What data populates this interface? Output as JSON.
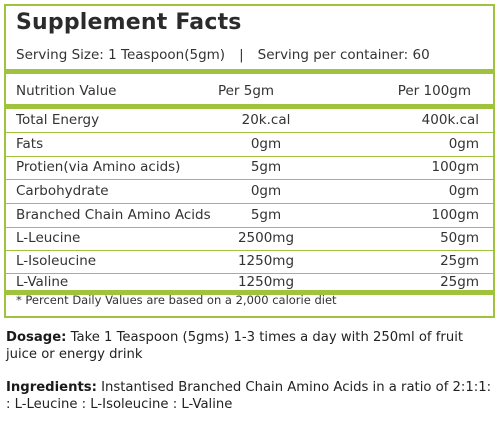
{
  "panel": {
    "title": "Supplement Facts",
    "serving_size": "Serving Size:  1 Teaspoon(5gm)",
    "serving_separator": "|",
    "servings_per_container": "Serving per container: 60",
    "header": {
      "label": "Nutrition Value",
      "per_5gm": "Per 5gm",
      "per_100gm": "Per 100gm"
    },
    "rows": [
      {
        "name": "Total Energy",
        "per_5gm": "20k.cal",
        "per_100gm": "400k.cal"
      },
      {
        "name": "Fats",
        "per_5gm": "0gm",
        "per_100gm": "0gm"
      },
      {
        "name": "Protien(via Amino acids)",
        "per_5gm": "5gm",
        "per_100gm": "100gm"
      },
      {
        "name": "Carbohydrate",
        "per_5gm": "0gm",
        "per_100gm": "0gm"
      },
      {
        "name": "Branched Chain Amino Acids",
        "per_5gm": "5gm",
        "per_100gm": "100gm"
      },
      {
        "name": "L-Leucine",
        "per_5gm": "2500mg",
        "per_100gm": "50gm"
      },
      {
        "name": "L-Isoleucine",
        "per_5gm": "1250mg",
        "per_100gm": "25gm"
      },
      {
        "name": "L-Valine",
        "per_5gm": "1250mg",
        "per_100gm": "25gm"
      }
    ],
    "footnote": "* Percent Daily Values are based on a 2,000 calorie diet"
  },
  "dosage": {
    "label": "Dosage:",
    "text": " Take 1 Teaspoon (5gms) 1-3 times a day with 250ml of fruit juice or energy drink"
  },
  "ingredients": {
    "label": "Ingredients:",
    "text": " Instantised Branched Chain Amino Acids in a ratio of 2:1:1: : L-Leucine : L-Isoleucine :  L-Valine"
  },
  "colors": {
    "accent": "#9fc33c"
  }
}
